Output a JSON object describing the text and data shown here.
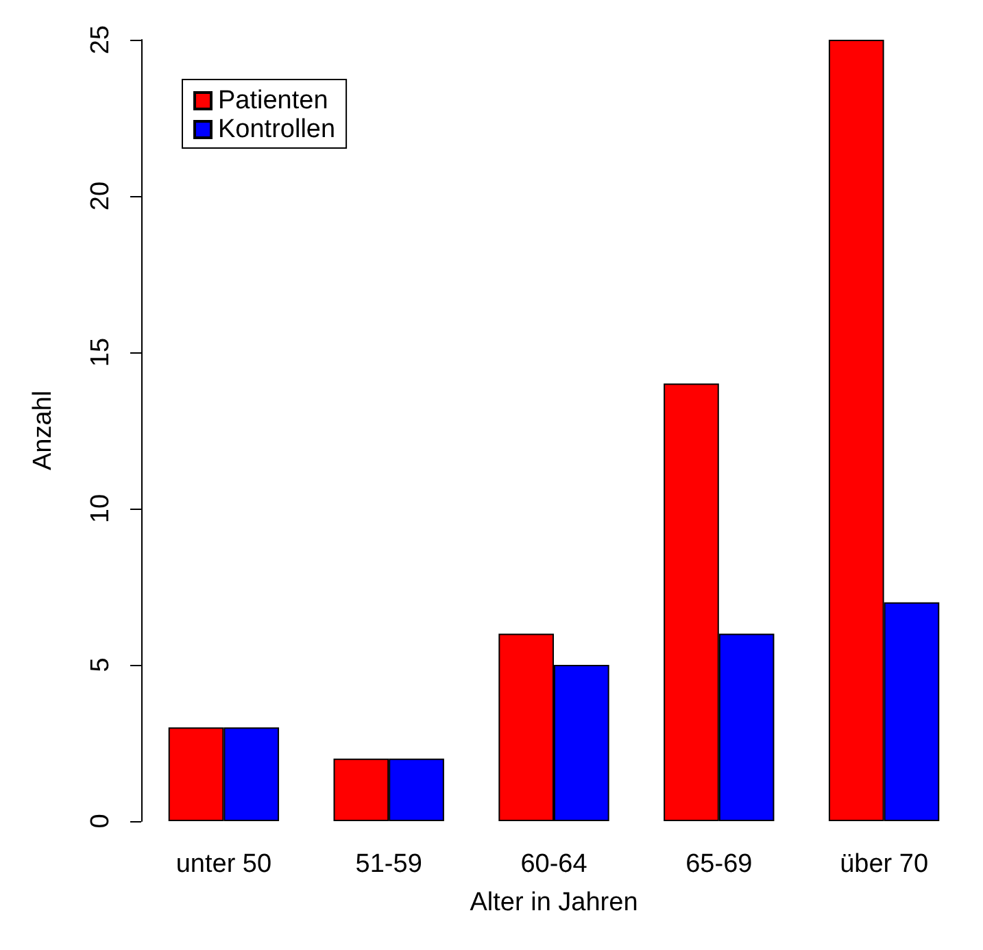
{
  "chart_data": {
    "type": "bar",
    "xlabel": "Alter in Jahren",
    "ylabel": "Anzahl",
    "categories": [
      "unter 50",
      "51-59",
      "60-64",
      "65-69",
      "über 70"
    ],
    "series": [
      {
        "name": "Patienten",
        "color": "#ff0000",
        "values": [
          3,
          2,
          6,
          14,
          25
        ]
      },
      {
        "name": "Kontrollen",
        "color": "#0000ff",
        "values": [
          3,
          2,
          5,
          6,
          7
        ]
      }
    ],
    "ylim": [
      0,
      25
    ],
    "yticks": [
      0,
      5,
      10,
      15,
      20,
      25
    ],
    "grid": false,
    "legend": "top left"
  }
}
